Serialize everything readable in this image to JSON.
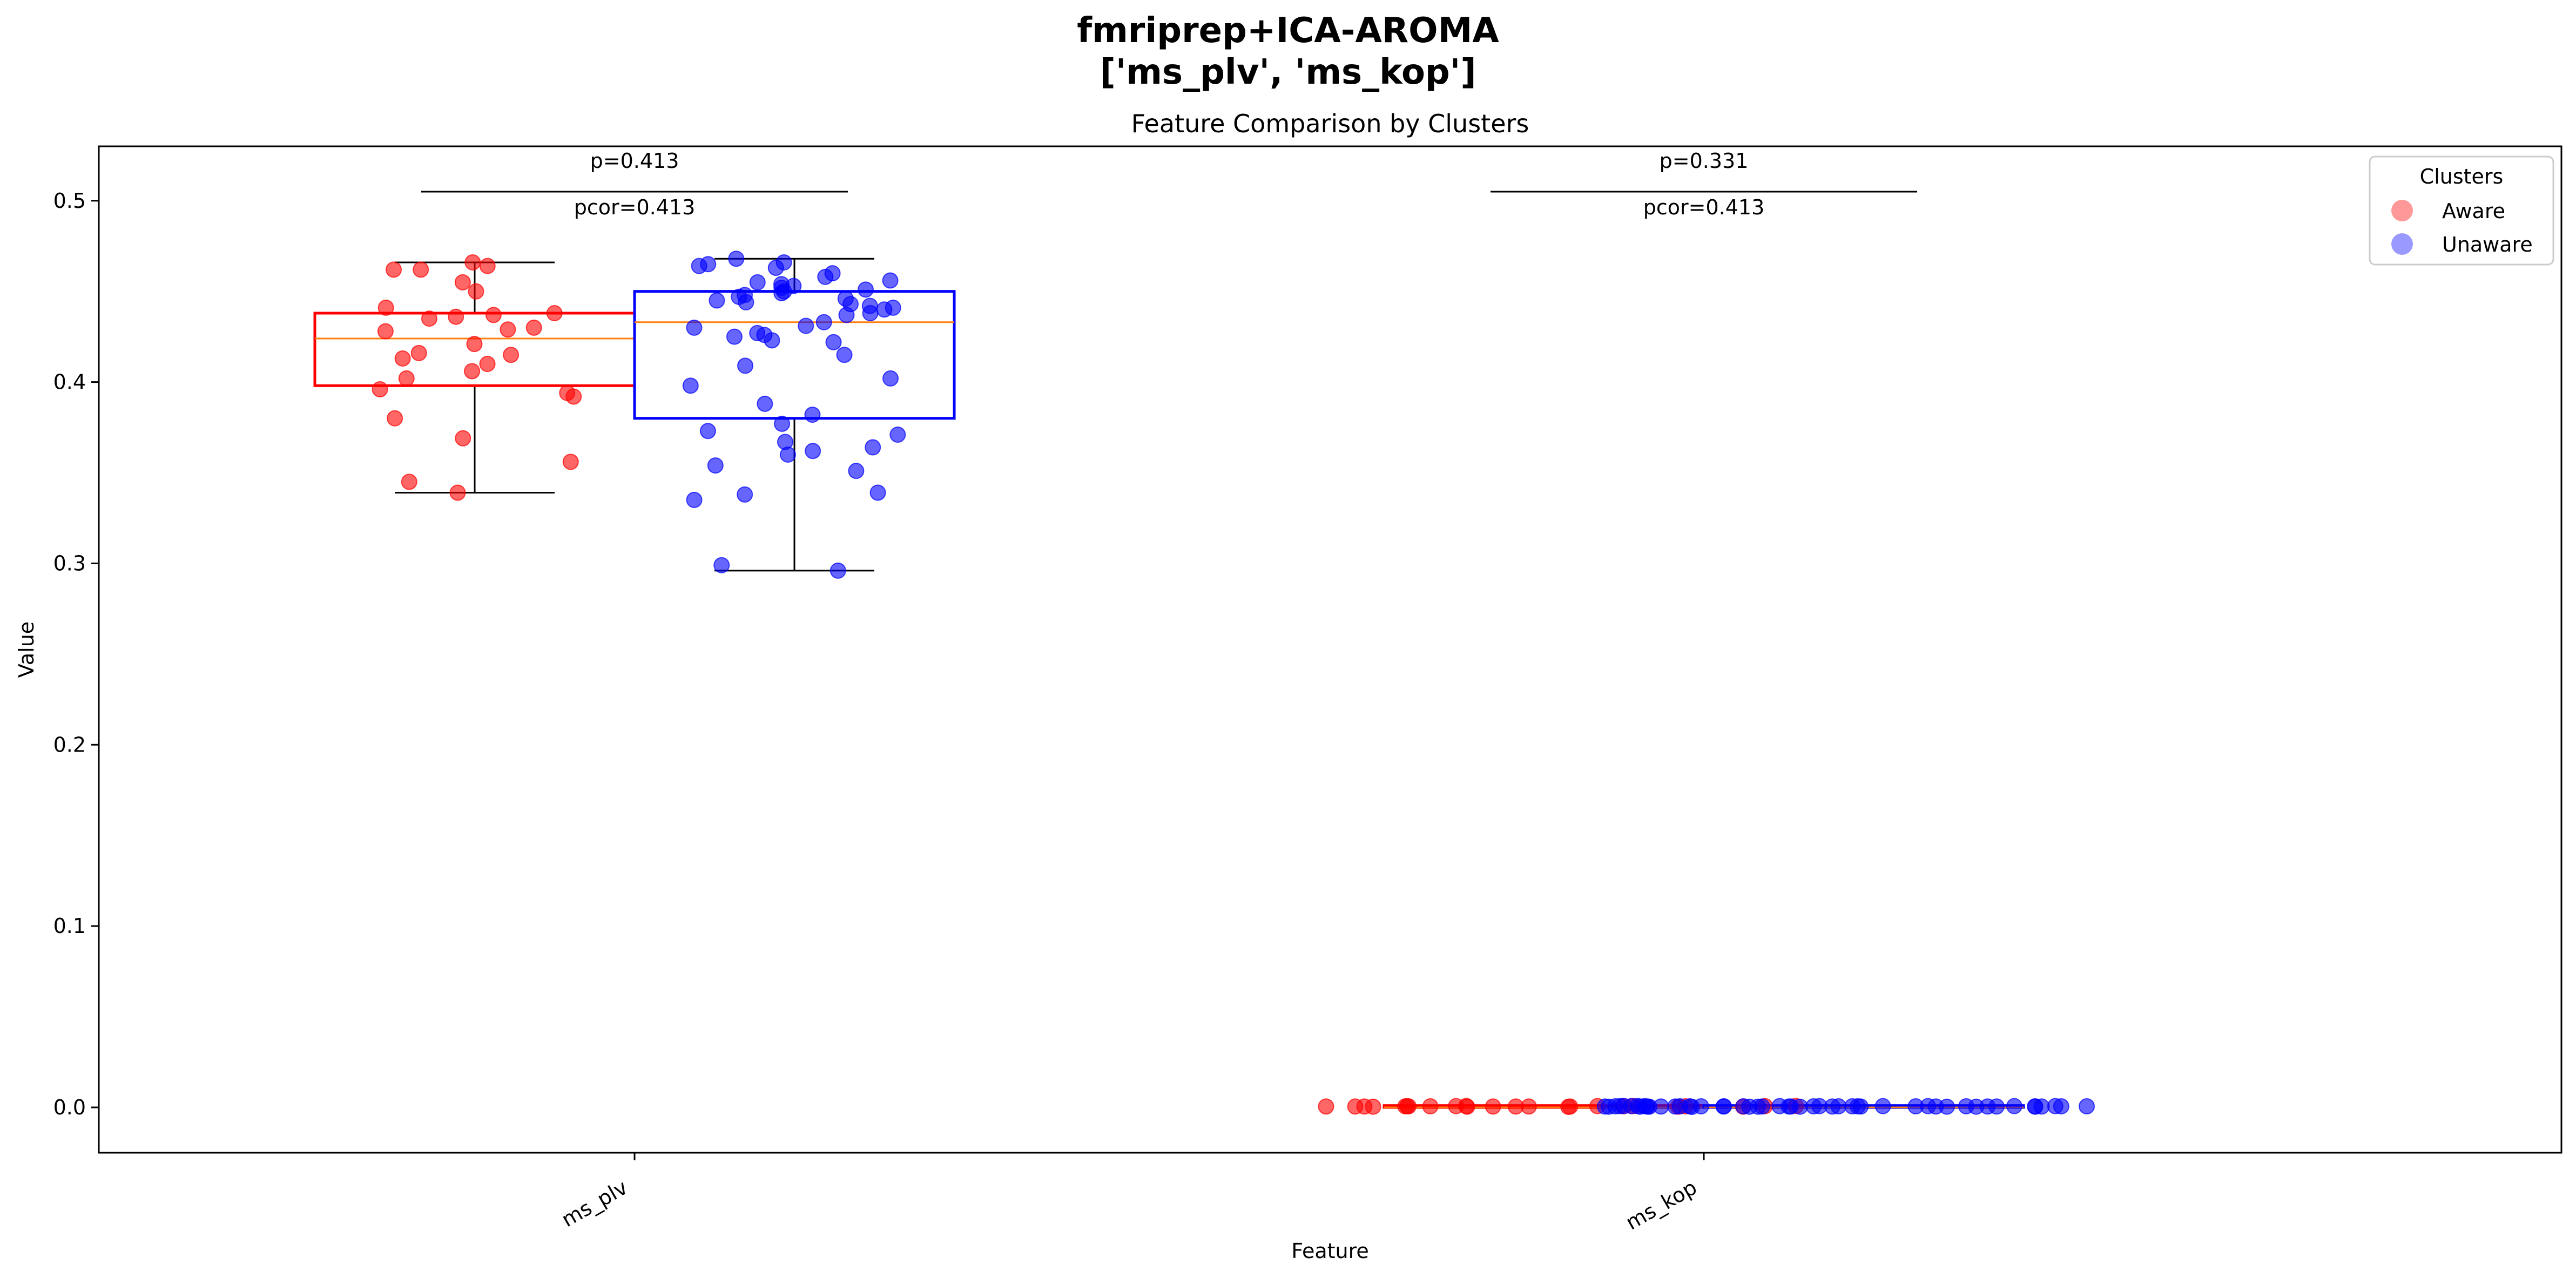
{
  "chart_data": {
    "type": "box",
    "suptitle_lines": [
      "fmriprep+ICA-AROMA",
      "['ms_plv', 'ms_kop']"
    ],
    "title": "Feature Comparison by Clusters",
    "xlabel": "Feature",
    "ylabel": "Value",
    "ylim": [
      -0.025,
      0.53
    ],
    "yticks": [
      0.0,
      0.1,
      0.2,
      0.3,
      0.4,
      0.5
    ],
    "ytick_labels": [
      "0.0",
      "0.1",
      "0.2",
      "0.3",
      "0.4",
      "0.5"
    ],
    "categories": [
      "ms_plv",
      "ms_kop"
    ],
    "legend": {
      "title": "Clusters",
      "placement": "top-right",
      "entries": [
        "Aware",
        "Unaware"
      ]
    },
    "series": [
      {
        "name": "Aware",
        "color": "#ff0000",
        "median_color": "#ff7f0e",
        "boxes": [
          {
            "category": "ms_plv",
            "whisker_low": 0.339,
            "q1": 0.398,
            "median": 0.424,
            "q3": 0.438,
            "whisker_high": 0.466
          },
          {
            "category": "ms_kop",
            "whisker_low": 0.0,
            "q1": 0.0,
            "median": 0.0,
            "q3": 0.001,
            "whisker_high": 0.001
          }
        ],
        "points": [
          {
            "category": "ms_plv",
            "values": [
              0.466,
              0.464,
              0.462,
              0.462,
              0.455,
              0.45,
              0.441,
              0.438,
              0.437,
              0.436,
              0.435,
              0.43,
              0.429,
              0.428,
              0.421,
              0.416,
              0.415,
              0.413,
              0.41,
              0.406,
              0.402,
              0.396,
              0.394,
              0.392,
              0.38,
              0.369,
              0.356,
              0.345,
              0.339
            ]
          },
          {
            "category": "ms_kop",
            "values": [
              0.0005,
              0.0007,
              0.0006,
              0.0004,
              0.0008,
              0.0005,
              0.0006,
              0.0003,
              0.0007,
              0.0005,
              0.0006,
              0.0004,
              0.0008,
              0.0005,
              0.0007,
              0.0006,
              0.0004,
              0.0005,
              0.0006,
              0.0007,
              0.0005,
              0.0004,
              0.0006,
              0.0005
            ]
          }
        ]
      },
      {
        "name": "Unaware",
        "color": "#0000ff",
        "median_color": "#ff7f0e",
        "boxes": [
          {
            "category": "ms_plv",
            "whisker_low": 0.296,
            "q1": 0.38,
            "median": 0.433,
            "q3": 0.45,
            "whisker_high": 0.468
          },
          {
            "category": "ms_kop",
            "whisker_low": 0.0,
            "q1": 0.0,
            "median": 0.0,
            "q3": 0.001,
            "whisker_high": 0.001
          }
        ],
        "points": [
          {
            "category": "ms_plv",
            "values": [
              0.468,
              0.466,
              0.465,
              0.464,
              0.463,
              0.46,
              0.458,
              0.456,
              0.455,
              0.454,
              0.453,
              0.452,
              0.451,
              0.45,
              0.449,
              0.448,
              0.447,
              0.446,
              0.445,
              0.444,
              0.443,
              0.442,
              0.441,
              0.44,
              0.438,
              0.437,
              0.433,
              0.431,
              0.43,
              0.427,
              0.426,
              0.425,
              0.423,
              0.422,
              0.415,
              0.409,
              0.402,
              0.398,
              0.388,
              0.382,
              0.377,
              0.373,
              0.371,
              0.367,
              0.364,
              0.362,
              0.36,
              0.354,
              0.351,
              0.339,
              0.338,
              0.335,
              0.299,
              0.296
            ]
          },
          {
            "category": "ms_kop",
            "values": [
              0.0006,
              0.0004,
              0.0007,
              0.0005,
              0.0006,
              0.0003,
              0.0008,
              0.0005,
              0.0006,
              0.0007,
              0.0004,
              0.0005,
              0.0006,
              0.0005,
              0.0007,
              0.0004,
              0.0006,
              0.0008,
              0.0005,
              0.0006,
              0.0004,
              0.0007,
              0.0005,
              0.0006,
              0.0005,
              0.0007,
              0.0004,
              0.0006,
              0.0005,
              0.0006,
              0.0007,
              0.0004,
              0.0005,
              0.0006,
              0.0005,
              0.0007,
              0.0006,
              0.0004,
              0.0005,
              0.0006,
              0.0005,
              0.0007,
              0.0006,
              0.0005,
              0.0004,
              0.0006,
              0.0005,
              0.0007,
              0.0006,
              0.0005,
              0.0004
            ]
          }
        ]
      }
    ],
    "annotations": [
      {
        "category": "ms_plv",
        "p_label": "p=0.413",
        "pcor_label": "pcor=0.413",
        "y": 0.505
      },
      {
        "category": "ms_kop",
        "p_label": "p=0.331",
        "pcor_label": "pcor=0.413",
        "y": 0.505
      }
    ]
  }
}
